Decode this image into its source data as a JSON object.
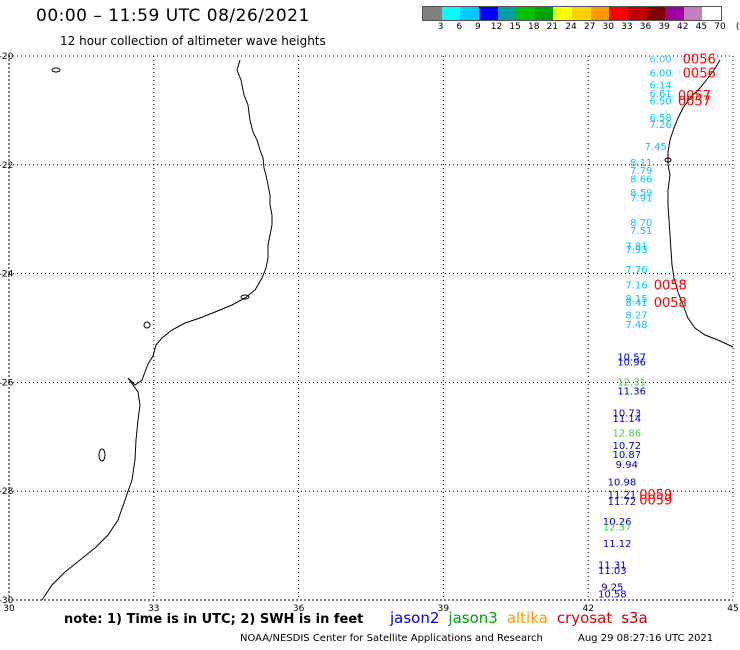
{
  "header": {
    "title": "00:00 – 11:59 UTC 08/26/2021",
    "subtitle": "12 hour collection of altimeter wave heights"
  },
  "colorbar": {
    "colors": [
      "#808080",
      "#00ffff",
      "#00c8ff",
      "#0000ff",
      "#00a0a0",
      "#00c000",
      "#00a000",
      "#ffff00",
      "#ffd000",
      "#ff9900",
      "#ff0000",
      "#c00000",
      "#800000",
      "#a000a0",
      "#c080c0",
      "#ffffff"
    ],
    "labels": [
      "3",
      "6",
      "9",
      "12",
      "15",
      "18",
      "21",
      "24",
      "27",
      "30",
      "33",
      "36",
      "39",
      "42",
      "45",
      "70",
      "(ft)"
    ]
  },
  "axes": {
    "x_ticks": [
      "30",
      "33",
      "36",
      "39",
      "42",
      "45"
    ],
    "y_ticks": [
      "-20",
      "-22",
      "-24",
      "-26",
      "-28",
      "-30"
    ],
    "lon_range": [
      30,
      45
    ],
    "lat_range": [
      -30,
      -20
    ]
  },
  "observations": [
    {
      "text": "6.00",
      "lat": -20.05,
      "lon": 43.5,
      "color": "#40c0e0"
    },
    {
      "text": "6.00",
      "lat": -20.3,
      "lon": 43.5,
      "color": "#00c8ff"
    },
    {
      "text": "6.14",
      "lat": -20.52,
      "lon": 43.5,
      "color": "#00c8ff"
    },
    {
      "text": "6.61",
      "lat": -20.68,
      "lon": 43.5,
      "color": "#00c8ff"
    },
    {
      "text": "6.50",
      "lat": -20.82,
      "lon": 43.5,
      "color": "#00c8ff"
    },
    {
      "text": "6.58",
      "lat": -21.12,
      "lon": 43.5,
      "color": "#00c8ff"
    },
    {
      "text": "7.26",
      "lat": -21.25,
      "lon": 43.5,
      "color": "#00c8ff"
    },
    {
      "text": "7.45",
      "lat": -21.65,
      "lon": 43.4,
      "color": "#00c8ff"
    },
    {
      "text": "8.11",
      "lat": -21.95,
      "lon": 43.1,
      "color": "#00c8ff"
    },
    {
      "text": "7.79",
      "lat": -22.1,
      "lon": 43.1,
      "color": "#00c8ff"
    },
    {
      "text": "8.66",
      "lat": -22.25,
      "lon": 43.1,
      "color": "#00c8ff"
    },
    {
      "text": "8.59",
      "lat": -22.5,
      "lon": 43.1,
      "color": "#00c8ff"
    },
    {
      "text": "7.91",
      "lat": -22.6,
      "lon": 43.1,
      "color": "#00c8ff"
    },
    {
      "text": "8.70",
      "lat": -23.05,
      "lon": 43.1,
      "color": "#00c8ff"
    },
    {
      "text": "7.51",
      "lat": -23.2,
      "lon": 43.1,
      "color": "#00c8ff"
    },
    {
      "text": "7.81",
      "lat": -23.48,
      "lon": 43.0,
      "color": "#00c8ff"
    },
    {
      "text": "7.93",
      "lat": -23.55,
      "lon": 43.0,
      "color": "#00c8ff"
    },
    {
      "text": "7.76",
      "lat": -23.92,
      "lon": 43.0,
      "color": "#00c8ff"
    },
    {
      "text": "7.16",
      "lat": -24.2,
      "lon": 43.0,
      "color": "#00c8ff"
    },
    {
      "text": "8.15",
      "lat": -24.45,
      "lon": 43.0,
      "color": "#00c8ff"
    },
    {
      "text": "8.41",
      "lat": -24.52,
      "lon": 43.0,
      "color": "#00c8ff"
    },
    {
      "text": "8.27",
      "lat": -24.75,
      "lon": 43.0,
      "color": "#00c8ff"
    },
    {
      "text": "7.48",
      "lat": -24.93,
      "lon": 43.0,
      "color": "#00c8ff"
    },
    {
      "text": "10.57",
      "lat": -25.52,
      "lon": 42.9,
      "color": "#0000c0"
    },
    {
      "text": "10.96",
      "lat": -25.62,
      "lon": 42.9,
      "color": "#0000c0"
    },
    {
      "text": "12.31",
      "lat": -25.98,
      "lon": 42.9,
      "color": "#40d040"
    },
    {
      "text": "11.36",
      "lat": -26.15,
      "lon": 42.9,
      "color": "#0000c0"
    },
    {
      "text": "10.73",
      "lat": -26.55,
      "lon": 42.8,
      "color": "#0000c0"
    },
    {
      "text": "11.14",
      "lat": -26.65,
      "lon": 42.8,
      "color": "#0000c0"
    },
    {
      "text": "12.86",
      "lat": -26.92,
      "lon": 42.8,
      "color": "#40d040"
    },
    {
      "text": "10.72",
      "lat": -27.15,
      "lon": 42.8,
      "color": "#0000c0"
    },
    {
      "text": "10.87",
      "lat": -27.32,
      "lon": 42.8,
      "color": "#0000c0"
    },
    {
      "text": "9.94",
      "lat": -27.5,
      "lon": 42.8,
      "color": "#0000c0"
    },
    {
      "text": "10.98",
      "lat": -27.82,
      "lon": 42.7,
      "color": "#0000c0"
    },
    {
      "text": "11.21",
      "lat": -28.05,
      "lon": 42.7,
      "color": "#0000c0"
    },
    {
      "text": "11.72",
      "lat": -28.18,
      "lon": 42.7,
      "color": "#0000c0"
    },
    {
      "text": "10.26",
      "lat": -28.55,
      "lon": 42.6,
      "color": "#0000c0"
    },
    {
      "text": "12.37",
      "lat": -28.65,
      "lon": 42.6,
      "color": "#40d040"
    },
    {
      "text": "11.12",
      "lat": -28.95,
      "lon": 42.6,
      "color": "#0000c0"
    },
    {
      "text": "11.31",
      "lat": -29.35,
      "lon": 42.5,
      "color": "#0000c0"
    },
    {
      "text": "11.03",
      "lat": -29.45,
      "lon": 42.5,
      "color": "#0000c0"
    },
    {
      "text": "9.25",
      "lat": -29.75,
      "lon": 42.5,
      "color": "#0000c0"
    },
    {
      "text": "10.58",
      "lat": -29.88,
      "lon": 42.5,
      "color": "#0000c0"
    }
  ],
  "time_markers": [
    {
      "text": "0056",
      "lat": -20.05,
      "lon": 44.3,
      "color": "#ff0000"
    },
    {
      "text": "0056",
      "lat": -20.3,
      "lon": 44.3,
      "color": "#ff0000"
    },
    {
      "text": "0057",
      "lat": -20.72,
      "lon": 44.2,
      "color": "#ff0000"
    },
    {
      "text": "0057",
      "lat": -20.82,
      "lon": 44.2,
      "color": "#ff0000"
    },
    {
      "text": "0058",
      "lat": -24.2,
      "lon": 43.7,
      "color": "#ff0000"
    },
    {
      "text": "0058",
      "lat": -24.52,
      "lon": 43.7,
      "color": "#ff0000"
    },
    {
      "text": "0059",
      "lat": -28.05,
      "lon": 43.4,
      "color": "#ff0000"
    },
    {
      "text": "0059",
      "lat": -28.15,
      "lon": 43.4,
      "color": "#ff0000"
    }
  ],
  "footer": {
    "note": "note: 1) Time is in UTC; 2) SWH is in feet",
    "satellites": [
      {
        "name": "jason2",
        "color": "#0000e0"
      },
      {
        "name": "jason3",
        "color": "#00a000"
      },
      {
        "name": "altika",
        "color": "#ff9900"
      },
      {
        "name": "cryosat",
        "color": "#e00000"
      },
      {
        "name": "s3a",
        "color": "#c00000"
      }
    ],
    "credit": "NOAA/NESDIS Center for Satellite Applications and Research",
    "timestamp": "Aug 29 08:27:16 UTC 2021"
  }
}
